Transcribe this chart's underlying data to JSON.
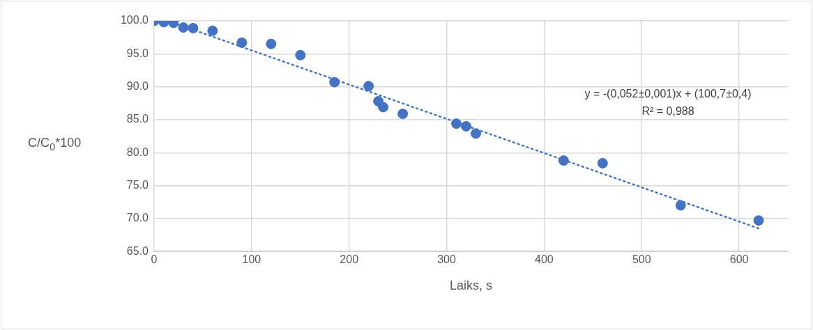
{
  "chart_data": {
    "type": "scatter",
    "xlabel": "Laiks, s",
    "ylabel": "C/C$_{0}$*100",
    "x": [
      0,
      10,
      20,
      30,
      40,
      60,
      90,
      120,
      150,
      185,
      220,
      230,
      235,
      255,
      310,
      320,
      330,
      420,
      460,
      540,
      620
    ],
    "series": [
      {
        "color": "#4472c4",
        "marker": "circle",
        "values": [
          100.0,
          99.8,
          99.7,
          99.0,
          98.9,
          98.5,
          96.7,
          96.5,
          94.8,
          90.7,
          90.1,
          87.8,
          86.9,
          85.9,
          84.4,
          84.0,
          82.9,
          78.8,
          78.4,
          72.0,
          69.7
        ]
      },
      {
        "type": "line",
        "color": "#4472c4",
        "line_style": "dotted",
        "marker": "none",
        "x": [
          14,
          620
        ],
        "values": [
          100.0,
          68.5
        ]
      }
    ],
    "xlim": [
      0,
      650
    ],
    "xticks": [
      0,
      100,
      200,
      300,
      400,
      500,
      600
    ],
    "ylim": [
      65,
      100
    ],
    "yticks": [
      {
        "value": 65,
        "label": "65.0"
      },
      {
        "value": 70,
        "label": "70.0"
      },
      {
        "value": 75,
        "label": "75.0"
      },
      {
        "value": 80,
        "label": "80.0"
      },
      {
        "value": 85,
        "label": "85.0"
      },
      {
        "value": 90,
        "label": "90.0"
      },
      {
        "value": 95,
        "label": "95.0"
      },
      {
        "value": 100,
        "label": "100.0"
      }
    ],
    "grid": true,
    "legend": false,
    "annotations": [
      "y = -(0,052±0,001)x + (100,7±0,4)",
      "R² = 0,988"
    ]
  }
}
